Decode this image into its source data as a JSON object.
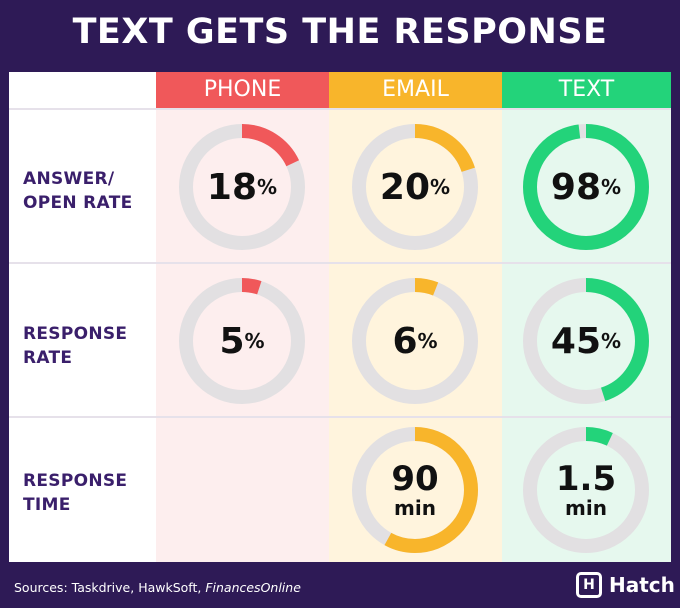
{
  "title": "TEXT GETS THE RESPONSE",
  "columns": [
    {
      "label": "PHONE",
      "color": "#f0585a",
      "bg": "#fdeeee"
    },
    {
      "label": "EMAIL",
      "color": "#f8b52b",
      "bg": "#fff4dd"
    },
    {
      "label": "TEXT",
      "color": "#23d37a",
      "bg": "#e6f8ee"
    }
  ],
  "rows": [
    {
      "label_line1": "ANSWER/",
      "label_line2": "OPEN RATE"
    },
    {
      "label_line1": "RESPONSE",
      "label_line2": "RATE"
    },
    {
      "label_line1": "RESPONSE",
      "label_line2": "TIME"
    }
  ],
  "chart_data": {
    "type": "table",
    "title": "TEXT GETS THE RESPONSE",
    "columns": [
      "PHONE",
      "EMAIL",
      "TEXT"
    ],
    "metrics": [
      "ANSWER/ OPEN RATE",
      "RESPONSE RATE",
      "RESPONSE TIME"
    ],
    "gauges": [
      {
        "row": 0,
        "col": 0,
        "value": 18,
        "fraction": 0.18,
        "num": "18",
        "unit": "%"
      },
      {
        "row": 0,
        "col": 1,
        "value": 20,
        "fraction": 0.2,
        "num": "20",
        "unit": "%"
      },
      {
        "row": 0,
        "col": 2,
        "value": 98,
        "fraction": 0.98,
        "num": "98",
        "unit": "%"
      },
      {
        "row": 1,
        "col": 0,
        "value": 5,
        "fraction": 0.05,
        "num": "5",
        "unit": "%"
      },
      {
        "row": 1,
        "col": 1,
        "value": 6,
        "fraction": 0.06,
        "num": "6",
        "unit": "%"
      },
      {
        "row": 1,
        "col": 2,
        "value": 45,
        "fraction": 0.45,
        "num": "45",
        "unit": "%"
      },
      {
        "row": 2,
        "col": 1,
        "value": 90,
        "fraction": 0.58,
        "num": "90",
        "unit": "min"
      },
      {
        "row": 2,
        "col": 2,
        "value": 1.5,
        "fraction": 0.07,
        "num": "1.5",
        "unit": "min"
      }
    ],
    "track_color": "#e2e0e2"
  },
  "footer": {
    "sources_prefix": "Sources: Taskdrive, HawkSoft, ",
    "sources_italic": "FinancesOnline",
    "logo_mark": "H",
    "logo_text": "Hatch"
  }
}
